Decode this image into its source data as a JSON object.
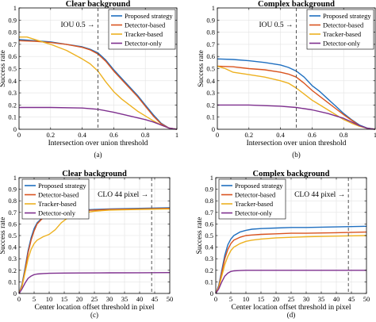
{
  "chart_data": [
    {
      "panel": "(a)",
      "type": "line",
      "title": "Clear background",
      "xlabel": "Intersection over union threshold",
      "ylabel": "Success rate",
      "xlim": [
        0,
        1
      ],
      "ylim": [
        0,
        1
      ],
      "xticks": [
        0,
        0.2,
        0.4,
        0.6,
        0.8,
        1
      ],
      "yticks": [
        0,
        0.1,
        0.2,
        0.3,
        0.4,
        0.5,
        0.6,
        0.7,
        0.8,
        0.9,
        1
      ],
      "grid": true,
      "legend": "top-right",
      "threshold": {
        "x": 0.5,
        "label": "IOU 0.5"
      },
      "series": [
        {
          "name": "Proposed strategy",
          "color": "#1f6fc0",
          "x": [
            0,
            0.1,
            0.2,
            0.3,
            0.4,
            0.45,
            0.5,
            0.55,
            0.6,
            0.65,
            0.7,
            0.75,
            0.8,
            0.85,
            0.9,
            0.95,
            1
          ],
          "y": [
            0.74,
            0.73,
            0.72,
            0.7,
            0.68,
            0.66,
            0.63,
            0.57,
            0.49,
            0.42,
            0.35,
            0.28,
            0.2,
            0.12,
            0.05,
            0.01,
            0
          ]
        },
        {
          "name": "Detector-based",
          "color": "#d9531e",
          "x": [
            0,
            0.1,
            0.2,
            0.3,
            0.4,
            0.45,
            0.5,
            0.55,
            0.6,
            0.65,
            0.7,
            0.75,
            0.8,
            0.85,
            0.9,
            0.95,
            1
          ],
          "y": [
            0.73,
            0.725,
            0.715,
            0.7,
            0.675,
            0.655,
            0.62,
            0.56,
            0.48,
            0.41,
            0.34,
            0.27,
            0.19,
            0.11,
            0.045,
            0.01,
            0
          ]
        },
        {
          "name": "Tracker-based",
          "color": "#edb120",
          "x": [
            0,
            0.05,
            0.1,
            0.2,
            0.3,
            0.4,
            0.45,
            0.5,
            0.55,
            0.6,
            0.65,
            0.7,
            0.75,
            0.8,
            0.85,
            0.9,
            0.95,
            1
          ],
          "y": [
            0.76,
            0.76,
            0.74,
            0.7,
            0.65,
            0.58,
            0.54,
            0.48,
            0.39,
            0.31,
            0.25,
            0.2,
            0.15,
            0.11,
            0.07,
            0.035,
            0.01,
            0
          ]
        },
        {
          "name": "Detector-only",
          "color": "#7e2f8e",
          "x": [
            0,
            0.2,
            0.4,
            0.5,
            0.6,
            0.7,
            0.8,
            0.85,
            0.9,
            0.95,
            1
          ],
          "y": [
            0.18,
            0.18,
            0.175,
            0.165,
            0.14,
            0.11,
            0.08,
            0.06,
            0.035,
            0.01,
            0
          ]
        }
      ]
    },
    {
      "panel": "(b)",
      "type": "line",
      "title": "Complex background",
      "xlabel": "Intersection over union threshold",
      "ylabel": "Success rate",
      "xlim": [
        0,
        1
      ],
      "ylim": [
        0,
        1
      ],
      "xticks": [
        0,
        0.2,
        0.4,
        0.6,
        0.8,
        1
      ],
      "yticks": [
        0,
        0.1,
        0.2,
        0.3,
        0.4,
        0.5,
        0.6,
        0.7,
        0.8,
        0.9,
        1
      ],
      "grid": true,
      "legend": "top-right",
      "threshold": {
        "x": 0.5,
        "label": "IOU 0.5"
      },
      "series": [
        {
          "name": "Proposed strategy",
          "color": "#1f6fc0",
          "x": [
            0,
            0.1,
            0.2,
            0.3,
            0.4,
            0.45,
            0.5,
            0.55,
            0.6,
            0.65,
            0.7,
            0.75,
            0.8,
            0.85,
            0.9,
            0.95,
            1
          ],
          "y": [
            0.58,
            0.575,
            0.565,
            0.55,
            0.53,
            0.51,
            0.48,
            0.43,
            0.36,
            0.31,
            0.25,
            0.19,
            0.13,
            0.08,
            0.035,
            0.01,
            0
          ]
        },
        {
          "name": "Detector-based",
          "color": "#d9531e",
          "x": [
            0,
            0.1,
            0.2,
            0.3,
            0.4,
            0.45,
            0.5,
            0.55,
            0.6,
            0.65,
            0.7,
            0.75,
            0.8,
            0.85,
            0.9,
            0.95,
            1
          ],
          "y": [
            0.52,
            0.515,
            0.5,
            0.49,
            0.47,
            0.455,
            0.43,
            0.38,
            0.32,
            0.27,
            0.22,
            0.17,
            0.12,
            0.075,
            0.03,
            0.008,
            0
          ]
        },
        {
          "name": "Tracker-based",
          "color": "#edb120",
          "x": [
            0,
            0.05,
            0.1,
            0.2,
            0.3,
            0.4,
            0.45,
            0.5,
            0.55,
            0.6,
            0.65,
            0.7,
            0.75,
            0.8,
            0.85,
            0.9,
            0.95,
            1
          ],
          "y": [
            0.52,
            0.5,
            0.47,
            0.45,
            0.43,
            0.4,
            0.38,
            0.34,
            0.29,
            0.24,
            0.2,
            0.16,
            0.12,
            0.08,
            0.05,
            0.025,
            0.008,
            0
          ]
        },
        {
          "name": "Detector-only",
          "color": "#7e2f8e",
          "x": [
            0,
            0.2,
            0.4,
            0.5,
            0.6,
            0.7,
            0.8,
            0.85,
            0.9,
            0.95,
            1
          ],
          "y": [
            0.2,
            0.2,
            0.19,
            0.18,
            0.16,
            0.13,
            0.09,
            0.06,
            0.03,
            0.008,
            0
          ]
        }
      ]
    },
    {
      "panel": "(c)",
      "type": "line",
      "title": "Clear background",
      "xlabel": "Center location offset threshold in pixel",
      "ylabel": "Success rate",
      "xlim": [
        0,
        50
      ],
      "ylim": [
        0,
        1
      ],
      "xticks": [
        0,
        5,
        10,
        15,
        20,
        25,
        30,
        35,
        40,
        45,
        50
      ],
      "yticks": [
        0,
        0.1,
        0.2,
        0.3,
        0.4,
        0.5,
        0.6,
        0.7,
        0.8,
        0.9,
        1
      ],
      "grid": true,
      "legend": "top-left",
      "threshold": {
        "x": 44,
        "label": "CLO 44 pixel"
      },
      "series": [
        {
          "name": "Proposed strategy",
          "color": "#1f6fc0",
          "x": [
            0,
            1,
            2,
            3,
            4,
            5,
            6,
            8,
            10,
            12,
            15,
            20,
            25,
            30,
            40,
            50
          ],
          "y": [
            0,
            0.08,
            0.22,
            0.37,
            0.48,
            0.56,
            0.61,
            0.66,
            0.685,
            0.7,
            0.71,
            0.72,
            0.725,
            0.73,
            0.735,
            0.74
          ]
        },
        {
          "name": "Detector-based",
          "color": "#d9531e",
          "x": [
            0,
            1,
            2,
            3,
            4,
            5,
            6,
            8,
            10,
            12,
            15,
            20,
            25,
            30,
            40,
            50
          ],
          "y": [
            0,
            0.07,
            0.2,
            0.35,
            0.46,
            0.54,
            0.6,
            0.655,
            0.68,
            0.695,
            0.705,
            0.715,
            0.72,
            0.725,
            0.73,
            0.735
          ]
        },
        {
          "name": "Tracker-based",
          "color": "#edb120",
          "x": [
            0,
            1,
            2,
            3,
            4,
            5,
            6,
            8,
            10,
            12,
            14,
            16,
            18,
            20,
            25,
            30,
            40,
            50
          ],
          "y": [
            0,
            0.06,
            0.18,
            0.3,
            0.38,
            0.43,
            0.46,
            0.49,
            0.51,
            0.55,
            0.61,
            0.65,
            0.67,
            0.69,
            0.71,
            0.72,
            0.725,
            0.73
          ]
        },
        {
          "name": "Detector-only",
          "color": "#7e2f8e",
          "x": [
            0,
            1,
            2,
            3,
            4,
            5,
            6,
            8,
            10,
            15,
            20,
            30,
            40,
            50
          ],
          "y": [
            0,
            0.04,
            0.09,
            0.13,
            0.15,
            0.162,
            0.168,
            0.172,
            0.174,
            0.176,
            0.177,
            0.178,
            0.179,
            0.18
          ]
        }
      ]
    },
    {
      "panel": "(d)",
      "type": "line",
      "title": "Complex background",
      "xlabel": "Center location offset threshold in pixel",
      "ylabel": "Success rate",
      "xlim": [
        0,
        50
      ],
      "ylim": [
        0,
        1
      ],
      "xticks": [
        0,
        5,
        10,
        15,
        20,
        25,
        30,
        35,
        40,
        45,
        50
      ],
      "yticks": [
        0,
        0.1,
        0.2,
        0.3,
        0.4,
        0.5,
        0.6,
        0.7,
        0.8,
        0.9,
        1
      ],
      "grid": true,
      "legend": "top-left",
      "threshold": {
        "x": 44,
        "label": "CLO 44 pixel"
      },
      "series": [
        {
          "name": "Proposed strategy",
          "color": "#1f6fc0",
          "x": [
            0,
            1,
            2,
            3,
            4,
            5,
            6,
            8,
            10,
            12,
            15,
            20,
            25,
            30,
            40,
            50
          ],
          "y": [
            0,
            0.07,
            0.2,
            0.33,
            0.42,
            0.47,
            0.5,
            0.53,
            0.545,
            0.555,
            0.56,
            0.565,
            0.57,
            0.57,
            0.575,
            0.58
          ]
        },
        {
          "name": "Detector-based",
          "color": "#d9531e",
          "x": [
            0,
            1,
            2,
            3,
            4,
            5,
            6,
            8,
            10,
            12,
            15,
            20,
            25,
            30,
            40,
            50
          ],
          "y": [
            0,
            0.06,
            0.18,
            0.3,
            0.38,
            0.43,
            0.46,
            0.485,
            0.5,
            0.505,
            0.51,
            0.515,
            0.52,
            0.52,
            0.525,
            0.53
          ]
        },
        {
          "name": "Tracker-based",
          "color": "#edb120",
          "x": [
            0,
            1,
            2,
            3,
            4,
            5,
            6,
            8,
            10,
            12,
            15,
            20,
            25,
            30,
            40,
            50
          ],
          "y": [
            0,
            0.05,
            0.15,
            0.25,
            0.32,
            0.37,
            0.4,
            0.43,
            0.45,
            0.46,
            0.47,
            0.48,
            0.485,
            0.49,
            0.495,
            0.5
          ]
        },
        {
          "name": "Detector-only",
          "color": "#7e2f8e",
          "x": [
            0,
            1,
            2,
            3,
            4,
            5,
            6,
            8,
            10,
            15,
            20,
            30,
            40,
            50
          ],
          "y": [
            0,
            0.04,
            0.1,
            0.15,
            0.175,
            0.19,
            0.195,
            0.198,
            0.2,
            0.2,
            0.2,
            0.2,
            0.2,
            0.2
          ]
        }
      ]
    }
  ]
}
